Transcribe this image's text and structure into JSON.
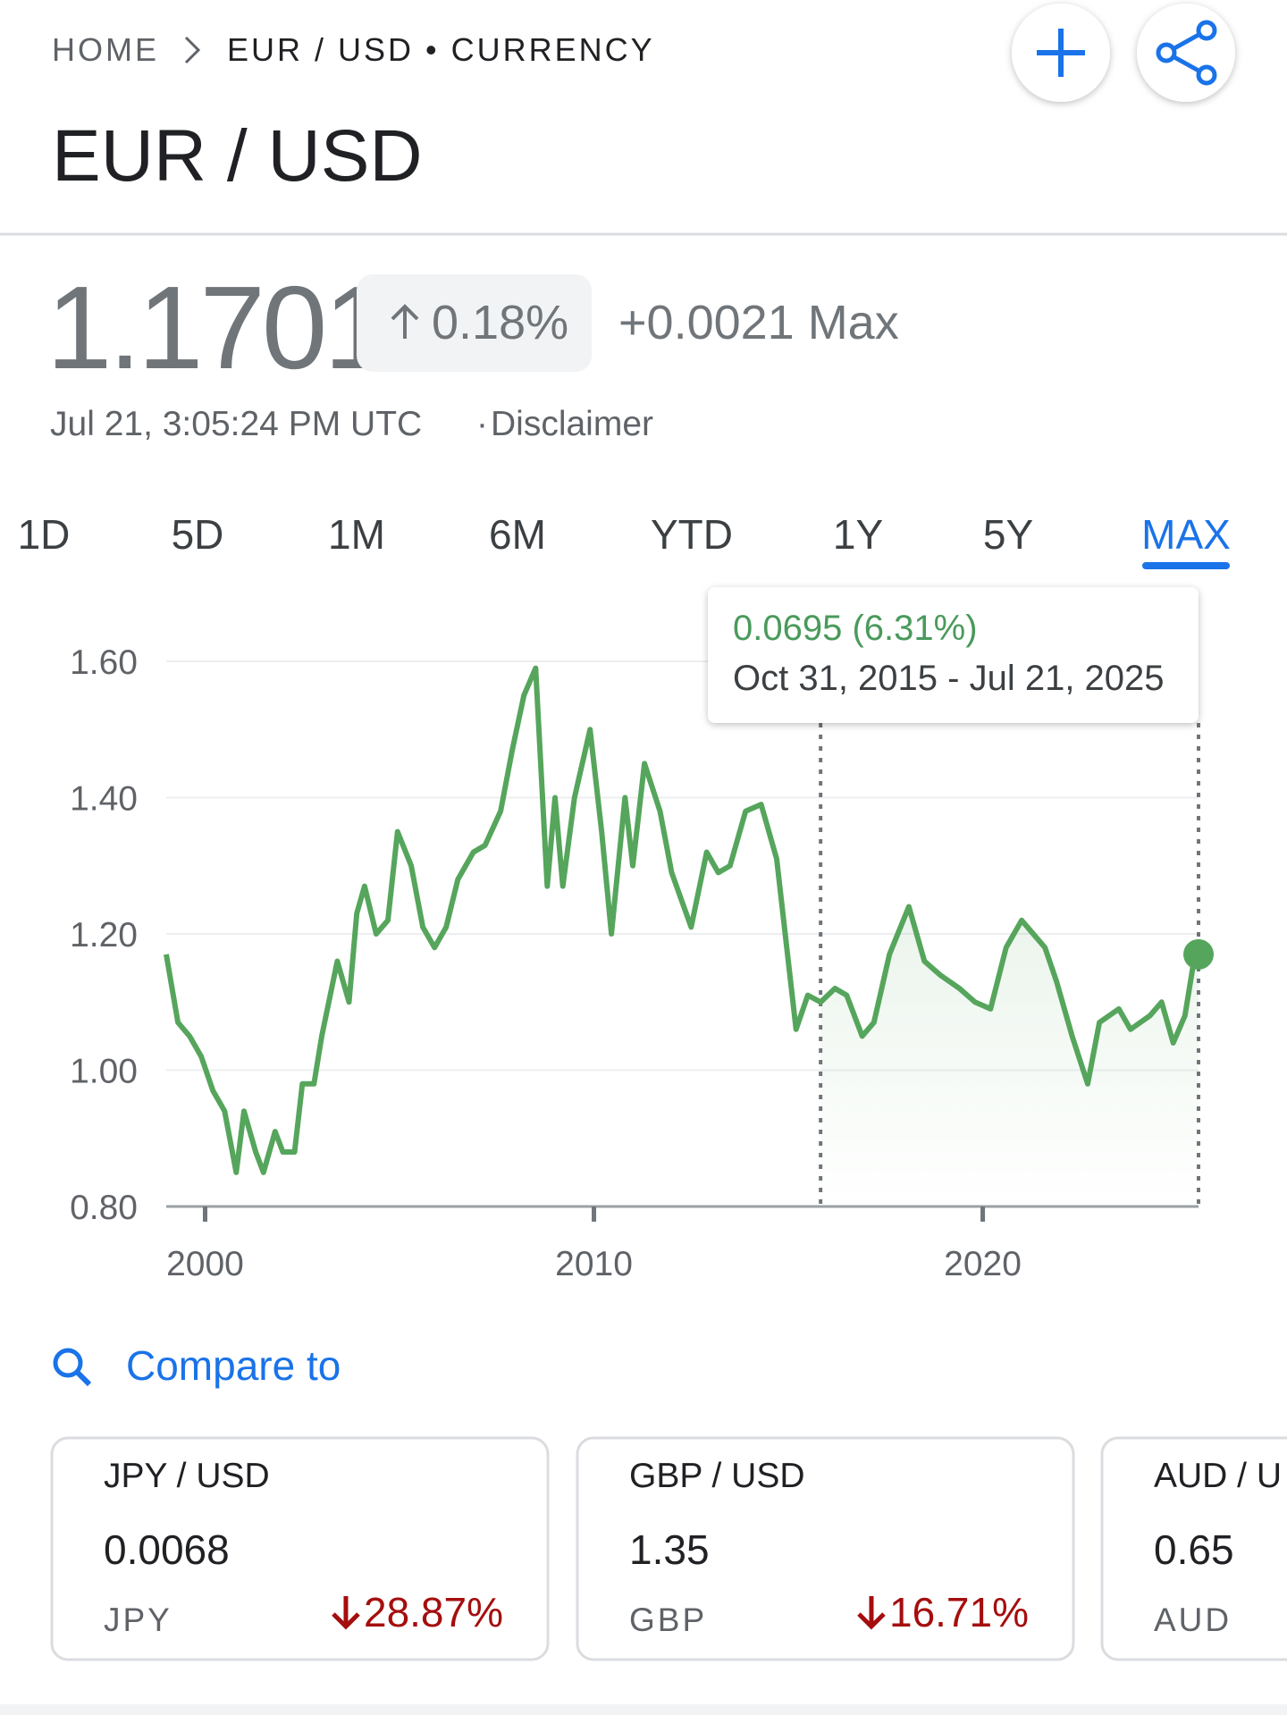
{
  "breadcrumb": {
    "home": "HOME",
    "current": "EUR / USD • CURRENCY"
  },
  "title": "EUR / USD",
  "price": "1.1701",
  "change_percent": "0.18%",
  "change_absolute": "+0.0021 Max",
  "timestamp": "Jul 21, 3:05:24 PM UTC",
  "disclaimer": "Disclaimer",
  "ranges": [
    "1D",
    "5D",
    "1M",
    "6M",
    "YTD",
    "1Y",
    "5Y",
    "MAX"
  ],
  "selected_range": 7,
  "chart_data": {
    "type": "line",
    "color": "#56a55c",
    "x": [
      1999.0,
      1999.3,
      1999.6,
      1999.9,
      2000.2,
      2000.5,
      2000.8,
      2001.0,
      2001.3,
      2001.5,
      2001.8,
      2002.0,
      2002.3,
      2002.5,
      2002.8,
      2003.0,
      2003.4,
      2003.7,
      2003.9,
      2004.1,
      2004.4,
      2004.7,
      2004.95,
      2005.3,
      2005.6,
      2005.9,
      2006.2,
      2006.5,
      2006.9,
      2007.2,
      2007.6,
      2007.9,
      2008.2,
      2008.5,
      2008.8,
      2009.0,
      2009.2,
      2009.5,
      2009.9,
      2010.2,
      2010.45,
      2010.8,
      2011.0,
      2011.3,
      2011.7,
      2012.0,
      2012.5,
      2012.9,
      2013.2,
      2013.5,
      2013.9,
      2014.3,
      2014.7,
      2015.0,
      2015.2,
      2015.5,
      2015.83,
      2016.2,
      2016.5,
      2016.9,
      2017.2,
      2017.6,
      2018.1,
      2018.5,
      2018.9,
      2019.4,
      2019.8,
      2020.2,
      2020.6,
      2021.0,
      2021.3,
      2021.6,
      2021.9,
      2022.3,
      2022.7,
      2023.0,
      2023.5,
      2023.8,
      2024.3,
      2024.6,
      2024.9,
      2025.2,
      2025.4,
      2025.55
    ],
    "values": [
      1.17,
      1.07,
      1.05,
      1.02,
      0.97,
      0.94,
      0.85,
      0.94,
      0.88,
      0.85,
      0.91,
      0.88,
      0.88,
      0.98,
      0.98,
      1.05,
      1.16,
      1.1,
      1.23,
      1.27,
      1.2,
      1.22,
      1.35,
      1.3,
      1.21,
      1.18,
      1.21,
      1.28,
      1.32,
      1.33,
      1.38,
      1.47,
      1.55,
      1.59,
      1.27,
      1.4,
      1.27,
      1.4,
      1.5,
      1.35,
      1.2,
      1.4,
      1.3,
      1.45,
      1.38,
      1.29,
      1.21,
      1.32,
      1.29,
      1.3,
      1.38,
      1.39,
      1.31,
      1.16,
      1.06,
      1.11,
      1.1,
      1.12,
      1.11,
      1.05,
      1.07,
      1.17,
      1.24,
      1.16,
      1.14,
      1.12,
      1.1,
      1.09,
      1.18,
      1.22,
      1.2,
      1.18,
      1.13,
      1.05,
      0.98,
      1.07,
      1.09,
      1.06,
      1.08,
      1.1,
      1.04,
      1.08,
      1.15,
      1.17
    ],
    "xlim": [
      1999.0,
      2025.55
    ],
    "ylim": [
      0.8,
      1.6
    ],
    "xticks": [
      2000,
      2010,
      2020
    ],
    "yticks": [
      {
        "value": 0.8,
        "label": "0.80"
      },
      {
        "value": 1.0,
        "label": "1.00"
      },
      {
        "value": 1.2,
        "label": "1.20"
      },
      {
        "value": 1.4,
        "label": "1.40"
      },
      {
        "value": 1.6,
        "label": "1.60"
      }
    ],
    "grid": true,
    "selection": [
      2015.83,
      2025.55
    ],
    "tooltip": {
      "change": "0.0695 (6.31%)",
      "range": "Oct 31, 2015 - Jul 21, 2025"
    }
  },
  "compare": {
    "label": "Compare to",
    "cards": [
      {
        "name": "JPY / USD",
        "value": "0.0068",
        "code": "JPY",
        "change": "28.87%"
      },
      {
        "name": "GBP / USD",
        "value": "1.35",
        "code": "GBP",
        "change": "16.71%"
      },
      {
        "name": "AUD / U",
        "value": "0.65",
        "code": "AUD"
      }
    ]
  }
}
